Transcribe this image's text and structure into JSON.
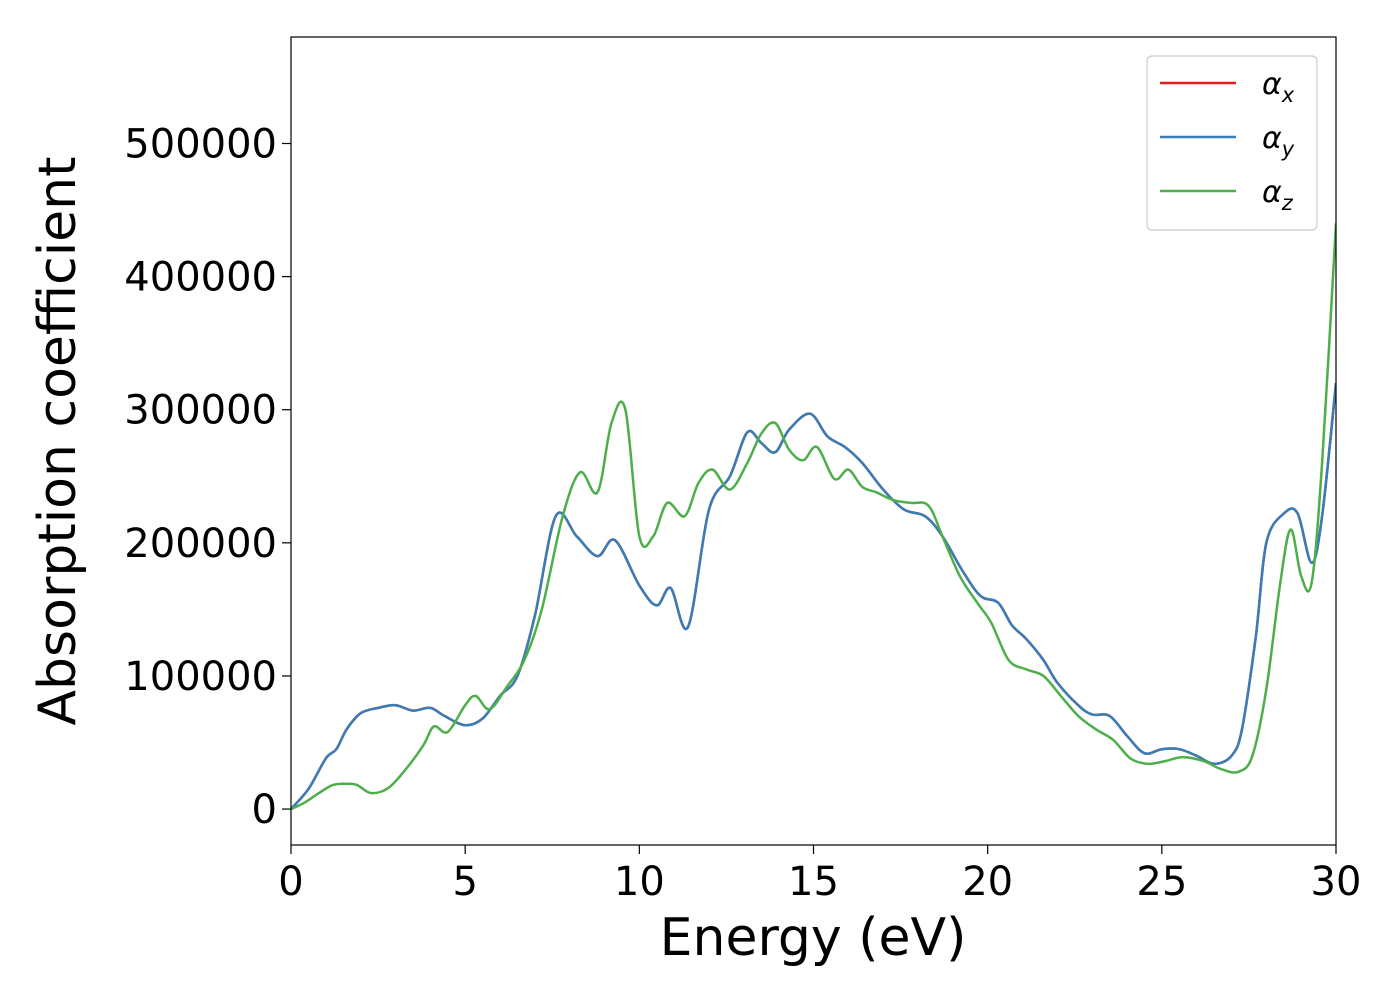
{
  "chart_data": {
    "type": "line",
    "title": "",
    "xlabel": "Energy (eV)",
    "ylabel": "Absorption coefficient",
    "xlim": [
      0,
      30
    ],
    "ylim": [
      -27000,
      580000
    ],
    "xticks": [
      0,
      5,
      10,
      15,
      20,
      25,
      30
    ],
    "yticks": [
      0,
      100000,
      200000,
      300000,
      400000,
      500000
    ],
    "grid": false,
    "legend": {
      "placement": "top-right",
      "entries": [
        {
          "symbol": "α",
          "sub": "x",
          "color": "#e41a1c"
        },
        {
          "symbol": "α",
          "sub": "y",
          "color": "#377eb8"
        },
        {
          "symbol": "α",
          "sub": "z",
          "color": "#4daf4a"
        }
      ]
    },
    "series": [
      {
        "name": "α_x",
        "color": "#e41a1c",
        "x": [
          0,
          0.5,
          1,
          1.3,
          1.6,
          2,
          2.5,
          3,
          3.5,
          4,
          4.4,
          5,
          5.5,
          6,
          6.5,
          7,
          7.6,
          8.2,
          8.8,
          9.3,
          10,
          10.5,
          10.9,
          11.4,
          12,
          12.6,
          13.1,
          13.5,
          13.9,
          14.3,
          14.9,
          15.4,
          15.9,
          16.4,
          17,
          17.6,
          18.2,
          18.7,
          19.3,
          19.8,
          20.3,
          20.7,
          21.1,
          21.6,
          22,
          22.6,
          23,
          23.5,
          24,
          24.5,
          25,
          25.5,
          26,
          26.5,
          27,
          27.3,
          27.7,
          28,
          28.5,
          28.9,
          29.3,
          29.6,
          30
        ],
        "values": [
          0,
          15000,
          38000,
          45000,
          60000,
          72000,
          76000,
          78000,
          74000,
          76000,
          70000,
          63000,
          68000,
          85000,
          100000,
          145000,
          220000,
          205000,
          190000,
          202000,
          168000,
          153000,
          166000,
          137000,
          225000,
          250000,
          283000,
          275000,
          268000,
          285000,
          297000,
          280000,
          272000,
          260000,
          240000,
          225000,
          220000,
          205000,
          178000,
          160000,
          155000,
          138000,
          128000,
          112000,
          95000,
          78000,
          71000,
          70000,
          55000,
          42000,
          45000,
          45000,
          40000,
          34000,
          40000,
          60000,
          130000,
          200000,
          222000,
          222000,
          185000,
          220000,
          320000
        ]
      },
      {
        "name": "α_y",
        "color": "#377eb8",
        "x": [
          0,
          0.5,
          1,
          1.3,
          1.6,
          2,
          2.5,
          3,
          3.5,
          4,
          4.4,
          5,
          5.5,
          6,
          6.5,
          7,
          7.6,
          8.2,
          8.8,
          9.3,
          10,
          10.5,
          10.9,
          11.4,
          12,
          12.6,
          13.1,
          13.5,
          13.9,
          14.3,
          14.9,
          15.4,
          15.9,
          16.4,
          17,
          17.6,
          18.2,
          18.7,
          19.3,
          19.8,
          20.3,
          20.7,
          21.1,
          21.6,
          22,
          22.6,
          23,
          23.5,
          24,
          24.5,
          25,
          25.5,
          26,
          26.5,
          27,
          27.3,
          27.7,
          28,
          28.5,
          28.9,
          29.3,
          29.6,
          30
        ],
        "values": [
          0,
          15000,
          38000,
          45000,
          60000,
          72000,
          76000,
          78000,
          74000,
          76000,
          70000,
          63000,
          68000,
          85000,
          100000,
          145000,
          220000,
          205000,
          190000,
          202000,
          168000,
          153000,
          166000,
          137000,
          225000,
          250000,
          283000,
          275000,
          268000,
          285000,
          297000,
          280000,
          272000,
          260000,
          240000,
          225000,
          220000,
          205000,
          178000,
          160000,
          155000,
          138000,
          128000,
          112000,
          95000,
          78000,
          71000,
          70000,
          55000,
          42000,
          45000,
          45000,
          40000,
          34000,
          40000,
          60000,
          130000,
          200000,
          222000,
          222000,
          185000,
          220000,
          320000
        ]
      },
      {
        "name": "α_z",
        "color": "#4daf4a",
        "x": [
          0,
          0.4,
          0.8,
          1.2,
          1.6,
          1.9,
          2.3,
          2.8,
          3.3,
          3.8,
          4.1,
          4.5,
          5.0,
          5.3,
          5.7,
          6.2,
          6.7,
          7.2,
          7.8,
          8.3,
          8.8,
          9.2,
          9.6,
          10.0,
          10.4,
          10.8,
          11.3,
          11.7,
          12.1,
          12.6,
          13.1,
          13.5,
          13.9,
          14.3,
          14.7,
          15.1,
          15.6,
          16.0,
          16.4,
          16.8,
          17.3,
          17.8,
          18.3,
          18.7,
          19.2,
          19.7,
          20.1,
          20.6,
          21.1,
          21.6,
          22.1,
          22.6,
          23.1,
          23.6,
          24.1,
          24.6,
          25.1,
          25.6,
          26.2,
          26.7,
          27.2,
          27.6,
          28.0,
          28.4,
          28.7,
          29.0,
          29.3,
          29.6,
          30
        ],
        "values": [
          0,
          5000,
          12000,
          18000,
          19000,
          18000,
          12000,
          16000,
          30000,
          48000,
          62000,
          58000,
          78000,
          85000,
          75000,
          92000,
          112000,
          150000,
          220000,
          253000,
          238000,
          290000,
          300000,
          205000,
          205000,
          230000,
          220000,
          245000,
          255000,
          240000,
          260000,
          282000,
          290000,
          270000,
          262000,
          272000,
          248000,
          255000,
          242000,
          238000,
          232000,
          230000,
          228000,
          205000,
          175000,
          155000,
          140000,
          112000,
          105000,
          100000,
          85000,
          70000,
          60000,
          52000,
          38000,
          34000,
          36000,
          39000,
          36000,
          30000,
          28000,
          40000,
          90000,
          170000,
          210000,
          175000,
          170000,
          260000,
          440000
        ]
      }
    ]
  }
}
